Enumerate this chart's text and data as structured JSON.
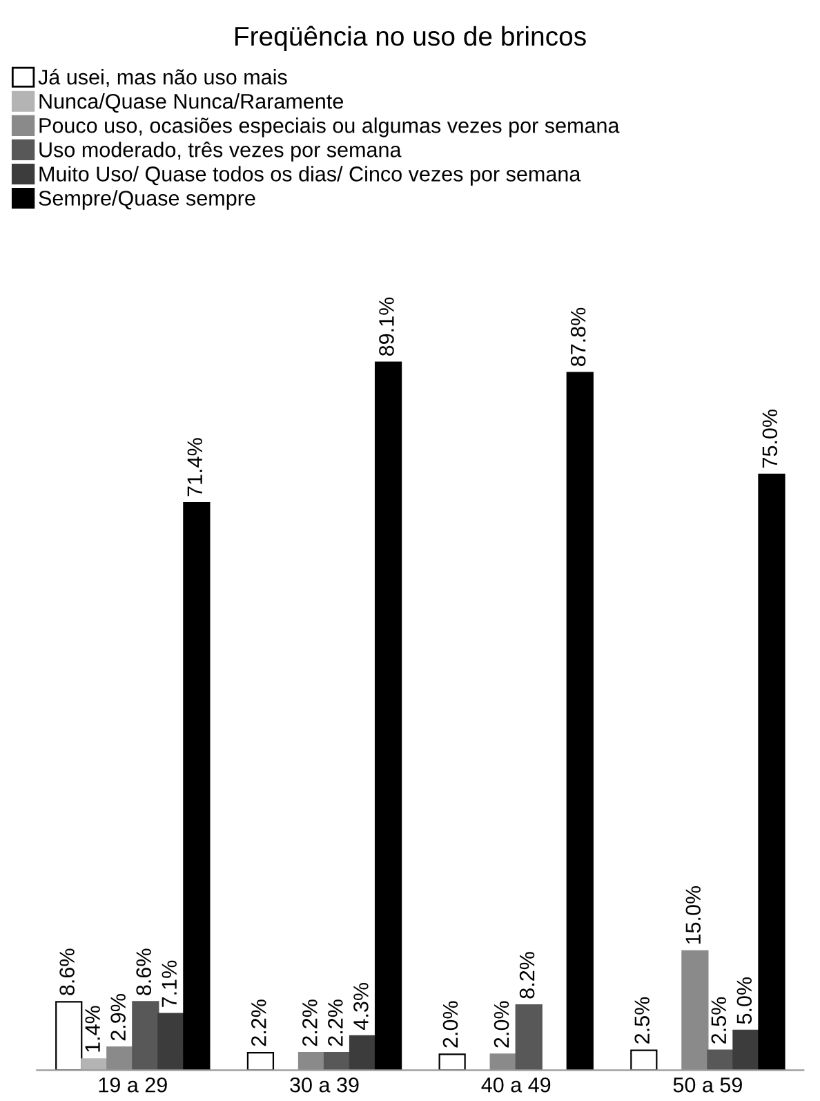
{
  "chart_data": {
    "type": "bar",
    "title": "Freqüência no uso de brincos",
    "categories": [
      "19 a 29",
      "30 a 39",
      "40 a 49",
      "50 a 59"
    ],
    "series": [
      {
        "name": "Já usei, mas não uso mais",
        "color": "#ffffff",
        "values": [
          8.6,
          2.2,
          2.0,
          2.5
        ],
        "value_labels": [
          "8.6%",
          "2.2%",
          "2.0%",
          "2.5%"
        ]
      },
      {
        "name": "Nunca/Quase Nunca/Raramente",
        "color": "#b4b4b4",
        "values": [
          1.4,
          null,
          null,
          null
        ],
        "value_labels": [
          "1.4%",
          null,
          null,
          null
        ]
      },
      {
        "name": "Pouco uso, ocasiões especiais ou algumas vezes por semana",
        "color": "#8a8a8a",
        "values": [
          2.9,
          2.2,
          2.0,
          15.0
        ],
        "value_labels": [
          "2.9%",
          "2.2%",
          "2.0%",
          "15.0%"
        ]
      },
      {
        "name": "Uso moderado, três vezes por semana",
        "color": "#585858",
        "values": [
          8.6,
          2.2,
          8.2,
          2.5
        ],
        "value_labels": [
          "8.6%",
          "2.2%",
          "8.2%",
          "2.5%"
        ]
      },
      {
        "name": "Muito Uso/ Quase todos os dias/ Cinco vezes por semana",
        "color": "#3c3c3c",
        "values": [
          7.1,
          4.3,
          null,
          5.0
        ],
        "value_labels": [
          "7.1%",
          "4.3%",
          null,
          "5.0%"
        ]
      },
      {
        "name": "Sempre/Quase sempre",
        "color": "#000000",
        "values": [
          71.4,
          89.1,
          87.8,
          75.0
        ],
        "value_labels": [
          "71.4%",
          "89.1%",
          "87.8%",
          "75.0%"
        ]
      }
    ],
    "legend": "top left",
    "grid": false,
    "tick_labels": "x"
  }
}
